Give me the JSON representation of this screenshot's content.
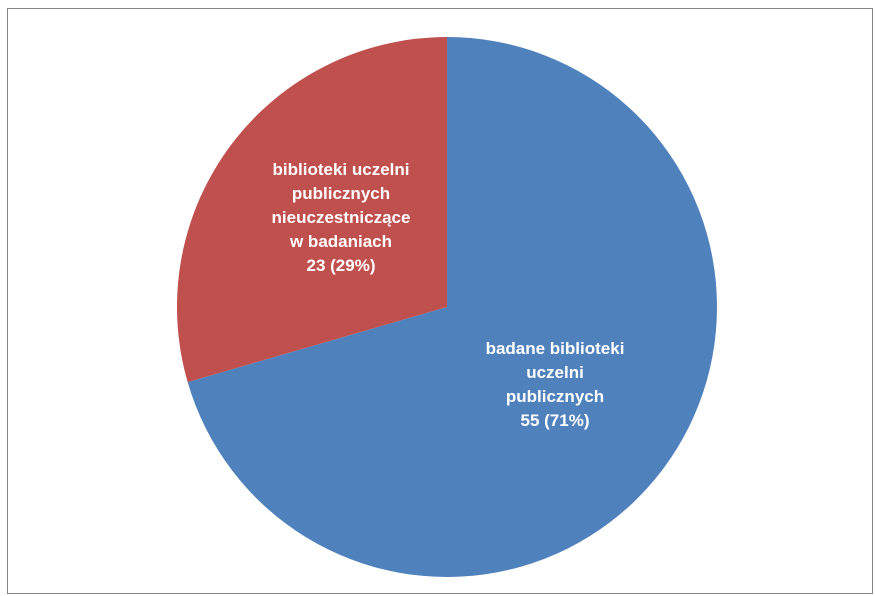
{
  "chart_data": {
    "type": "pie",
    "title": "",
    "slices": [
      {
        "label_lines": [
          "badane biblioteki",
          "uczelni",
          "publicznych",
          "55 (71%)"
        ],
        "value": 55,
        "percent": 71,
        "color": "#4f81bd"
      },
      {
        "label_lines": [
          "biblioteki uczelni",
          "publicznych",
          "nieuczestniczące",
          "w badaniach",
          "23 (29%)"
        ],
        "value": 23,
        "percent": 29,
        "color": "#c0504d"
      }
    ],
    "start_angle_deg": 0,
    "direction": "clockwise",
    "legend": "none",
    "data_labels": "inside"
  }
}
